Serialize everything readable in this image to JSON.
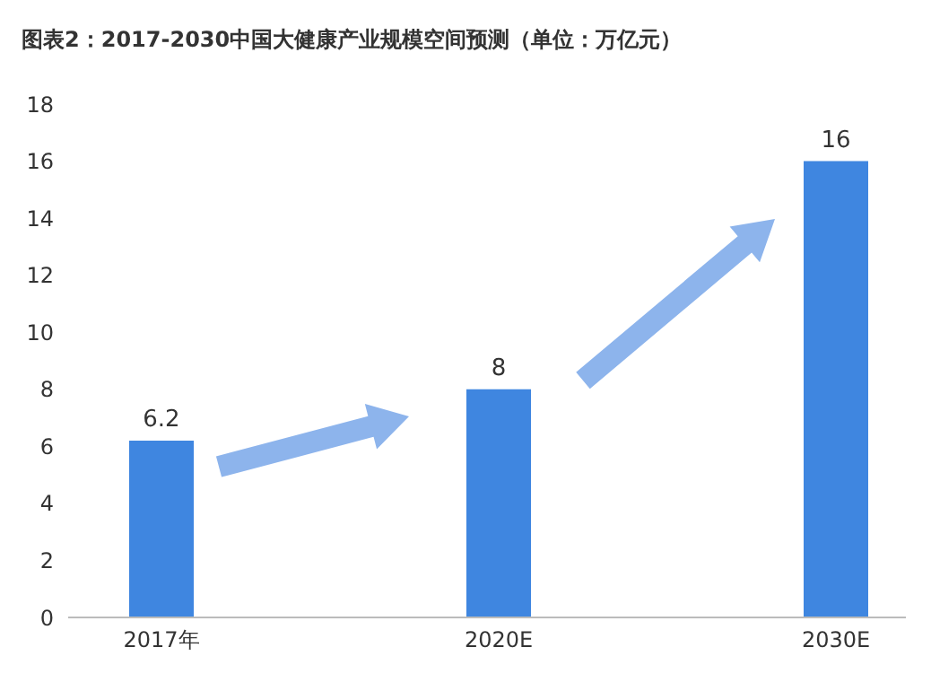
{
  "chart_data": {
    "type": "bar",
    "title": "图表2：2017-2030中国大健康产业规模空间预测（单位：万亿元）",
    "categories": [
      "2017年",
      "2020E",
      "2030E"
    ],
    "values": [
      6.2,
      8,
      16
    ],
    "color": "#3f86e0",
    "ylim": [
      0,
      18
    ],
    "yticks": [
      0,
      2,
      4,
      6,
      8,
      10,
      12,
      14,
      16,
      18
    ],
    "data_labels": true
  }
}
